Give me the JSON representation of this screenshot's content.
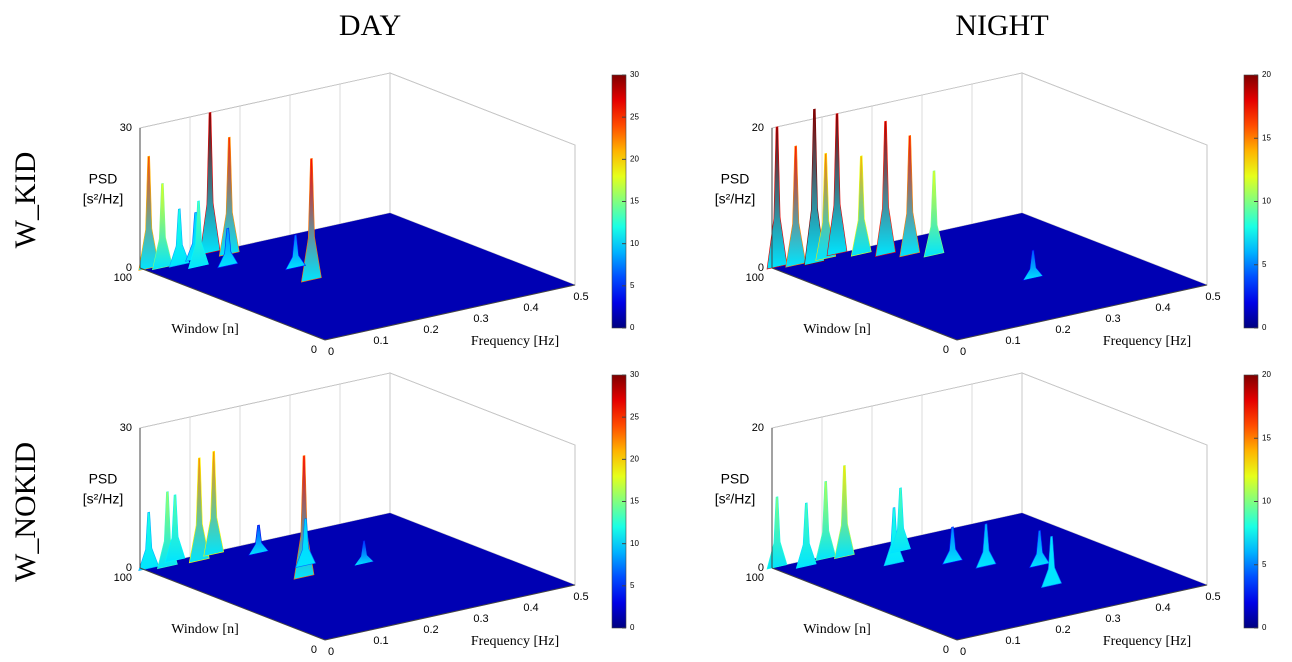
{
  "column_titles": [
    "DAY",
    "NIGHT"
  ],
  "row_titles": [
    "W_KID",
    "W_NOKID"
  ],
  "chart_data": [
    {
      "type": "surface3d",
      "xlabel": "Frequency [Hz]",
      "ylabel": "Window [n]",
      "zlabel": [
        "PSD",
        "[s²/Hz]"
      ],
      "xlim": [
        0,
        0.5
      ],
      "xticks": [
        0,
        0.1,
        0.2,
        0.3,
        0.4,
        0.5
      ],
      "ylim": [
        0,
        100
      ],
      "yticks": [
        0,
        100
      ],
      "zlim": [
        0,
        30
      ],
      "zticks": [
        0,
        30
      ],
      "colormap": "jet",
      "clim": [
        0,
        30
      ],
      "cticks": [
        0,
        5,
        10,
        15,
        20,
        25,
        30
      ],
      "grid": true,
      "peaks": {
        "freq": [
          0.01,
          0.03,
          0.06,
          0.1,
          0.14,
          0.16,
          0.12,
          0.18,
          0.08,
          0.2
        ],
        "window": [
          98,
          96,
          95,
          97,
          100,
          95,
          85,
          56,
          90,
          70
        ],
        "psd": [
          24,
          18,
          12,
          10,
          30,
          25,
          8,
          26,
          14,
          7
        ]
      }
    },
    {
      "type": "surface3d",
      "xlabel": "Frequency [Hz]",
      "ylabel": "Window [n]",
      "zlabel": [
        "PSD",
        "[s²/Hz]"
      ],
      "xlim": [
        0,
        0.5
      ],
      "xticks": [
        0,
        0.1,
        0.2,
        0.3,
        0.4,
        0.5
      ],
      "ylim": [
        0,
        100
      ],
      "yticks": [
        0,
        100
      ],
      "zlim": [
        0,
        20
      ],
      "zticks": [
        0,
        20
      ],
      "colormap": "jet",
      "clim": [
        0,
        20
      ],
      "cticks": [
        0,
        5,
        10,
        15,
        20
      ],
      "grid": true,
      "peaks": {
        "freq": [
          0.01,
          0.04,
          0.07,
          0.1,
          0.13,
          0.16,
          0.19,
          0.22,
          0.25,
          0.3
        ],
        "window": [
          100,
          98,
          96,
          98,
          100,
          95,
          90,
          85,
          80,
          40
        ],
        "psd": [
          20,
          17,
          22,
          15,
          20,
          14,
          19,
          17,
          12,
          4
        ]
      }
    },
    {
      "type": "surface3d",
      "xlabel": "Frequency [Hz]",
      "ylabel": "Window [n]",
      "zlabel": [
        "PSD",
        "[s²/Hz]"
      ],
      "xlim": [
        0,
        0.5
      ],
      "xticks": [
        0,
        0.1,
        0.2,
        0.3,
        0.4,
        0.5
      ],
      "ylim": [
        0,
        100
      ],
      "yticks": [
        0,
        100
      ],
      "zlim": [
        0,
        30
      ],
      "zticks": [
        0,
        30
      ],
      "colormap": "jet",
      "clim": [
        0,
        30
      ],
      "cticks": [
        0,
        5,
        10,
        15,
        20,
        25,
        30
      ],
      "grid": true,
      "peaks": {
        "freq": [
          0.01,
          0.04,
          0.07,
          0.1,
          0.14,
          0.18,
          0.22,
          0.2,
          0.3
        ],
        "window": [
          98,
          96,
          100,
          95,
          98,
          60,
          70,
          90,
          60
        ],
        "psd": [
          12,
          16,
          14,
          22,
          22,
          26,
          10,
          6,
          5
        ]
      }
    },
    {
      "type": "surface3d",
      "xlabel": "Frequency [Hz]",
      "ylabel": "Window [n]",
      "zlabel": [
        "PSD",
        "[s²/Hz]"
      ],
      "xlim": [
        0,
        0.5
      ],
      "xticks": [
        0,
        0.1,
        0.2,
        0.3,
        0.4,
        0.5
      ],
      "ylim": [
        0,
        100
      ],
      "yticks": [
        0,
        100
      ],
      "zlim": [
        0,
        20
      ],
      "zticks": [
        0,
        20
      ],
      "colormap": "jet",
      "clim": [
        0,
        20
      ],
      "cticks": [
        0,
        5,
        10,
        15,
        20
      ],
      "grid": true,
      "peaks": {
        "freq": [
          0.01,
          0.05,
          0.1,
          0.13,
          0.17,
          0.22,
          0.28,
          0.35,
          0.3,
          0.25
        ],
        "window": [
          100,
          95,
          98,
          96,
          80,
          90,
          60,
          50,
          30,
          70
        ],
        "psd": [
          10,
          9,
          11,
          13,
          8,
          9,
          6,
          5,
          7,
          5
        ]
      }
    }
  ]
}
